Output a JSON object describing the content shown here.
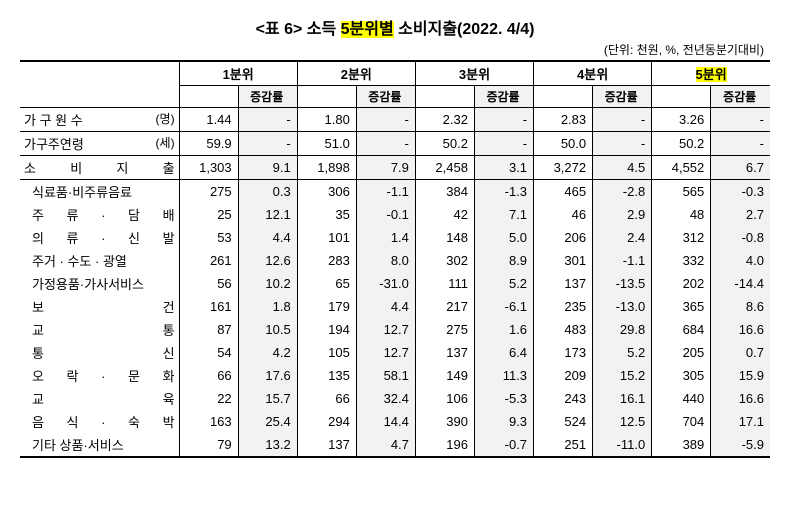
{
  "title_prefix": "<표 6> 소득 ",
  "title_hl": "5분위별",
  "title_suffix": " 소비지출(2022. 4/4)",
  "unit_note": "(단위: 천원, %, 전년동분기대비)",
  "quintiles": [
    "1분위",
    "2분위",
    "3분위",
    "4분위",
    "5분위"
  ],
  "rate_label": "증감률",
  "rows": [
    {
      "label": "가 구 원 수",
      "unit": "(명)",
      "sub": false,
      "spread": false,
      "border": "thin-bot",
      "v": [
        "1.44",
        "-",
        "1.80",
        "-",
        "2.32",
        "-",
        "2.83",
        "-",
        "3.26",
        "-"
      ]
    },
    {
      "label": "가구주연령",
      "unit": "(세)",
      "sub": false,
      "spread": false,
      "border": "thin-bot",
      "v": [
        "59.9",
        "-",
        "51.0",
        "-",
        "50.2",
        "-",
        "50.0",
        "-",
        "50.2",
        "-"
      ]
    },
    {
      "label": "소 비 지 출",
      "unit": "",
      "sub": false,
      "spread": true,
      "border": "thin-bot",
      "v": [
        "1,303",
        "9.1",
        "1,898",
        "7.9",
        "2,458",
        "3.1",
        "3,272",
        "4.5",
        "4,552",
        "6.7"
      ]
    },
    {
      "label": "식료품·비주류음료",
      "unit": "",
      "sub": true,
      "spread": false,
      "border": "",
      "v": [
        "275",
        "0.3",
        "306",
        "-1.1",
        "384",
        "-1.3",
        "465",
        "-2.8",
        "565",
        "-0.3"
      ]
    },
    {
      "label": "주 류 · 담 배",
      "unit": "",
      "sub": true,
      "spread": true,
      "border": "",
      "v": [
        "25",
        "12.1",
        "35",
        "-0.1",
        "42",
        "7.1",
        "46",
        "2.9",
        "48",
        "2.7"
      ]
    },
    {
      "label": "의 류 · 신 발",
      "unit": "",
      "sub": true,
      "spread": true,
      "border": "",
      "v": [
        "53",
        "4.4",
        "101",
        "1.4",
        "148",
        "5.0",
        "206",
        "2.4",
        "312",
        "-0.8"
      ]
    },
    {
      "label": "주거 · 수도 · 광열",
      "unit": "",
      "sub": true,
      "spread": false,
      "border": "",
      "v": [
        "261",
        "12.6",
        "283",
        "8.0",
        "302",
        "8.9",
        "301",
        "-1.1",
        "332",
        "4.0"
      ]
    },
    {
      "label": "가정용품·가사서비스",
      "unit": "",
      "sub": true,
      "spread": false,
      "border": "",
      "v": [
        "56",
        "10.2",
        "65",
        "-31.0",
        "111",
        "5.2",
        "137",
        "-13.5",
        "202",
        "-14.4"
      ]
    },
    {
      "label": "보         건",
      "unit": "",
      "sub": true,
      "spread": true,
      "border": "",
      "v": [
        "161",
        "1.8",
        "179",
        "4.4",
        "217",
        "-6.1",
        "235",
        "-13.0",
        "365",
        "8.6"
      ]
    },
    {
      "label": "교         통",
      "unit": "",
      "sub": true,
      "spread": true,
      "border": "",
      "v": [
        "87",
        "10.5",
        "194",
        "12.7",
        "275",
        "1.6",
        "483",
        "29.8",
        "684",
        "16.6"
      ]
    },
    {
      "label": "통         신",
      "unit": "",
      "sub": true,
      "spread": true,
      "border": "",
      "v": [
        "54",
        "4.2",
        "105",
        "12.7",
        "137",
        "6.4",
        "173",
        "5.2",
        "205",
        "0.7"
      ]
    },
    {
      "label": "오 락 · 문 화",
      "unit": "",
      "sub": true,
      "spread": true,
      "border": "",
      "v": [
        "66",
        "17.6",
        "135",
        "58.1",
        "149",
        "11.3",
        "209",
        "15.2",
        "305",
        "15.9"
      ]
    },
    {
      "label": "교         육",
      "unit": "",
      "sub": true,
      "spread": true,
      "border": "",
      "v": [
        "22",
        "15.7",
        "66",
        "32.4",
        "106",
        "-5.3",
        "243",
        "16.1",
        "440",
        "16.6"
      ]
    },
    {
      "label": "음 식 · 숙 박",
      "unit": "",
      "sub": true,
      "spread": true,
      "border": "",
      "v": [
        "163",
        "25.4",
        "294",
        "14.4",
        "390",
        "9.3",
        "524",
        "12.5",
        "704",
        "17.1"
      ]
    },
    {
      "label": "기타 상품·서비스",
      "unit": "",
      "sub": true,
      "spread": false,
      "border": "bot-border",
      "v": [
        "79",
        "13.2",
        "137",
        "4.7",
        "196",
        "-0.7",
        "251",
        "-11.0",
        "389",
        "-5.9"
      ]
    }
  ]
}
